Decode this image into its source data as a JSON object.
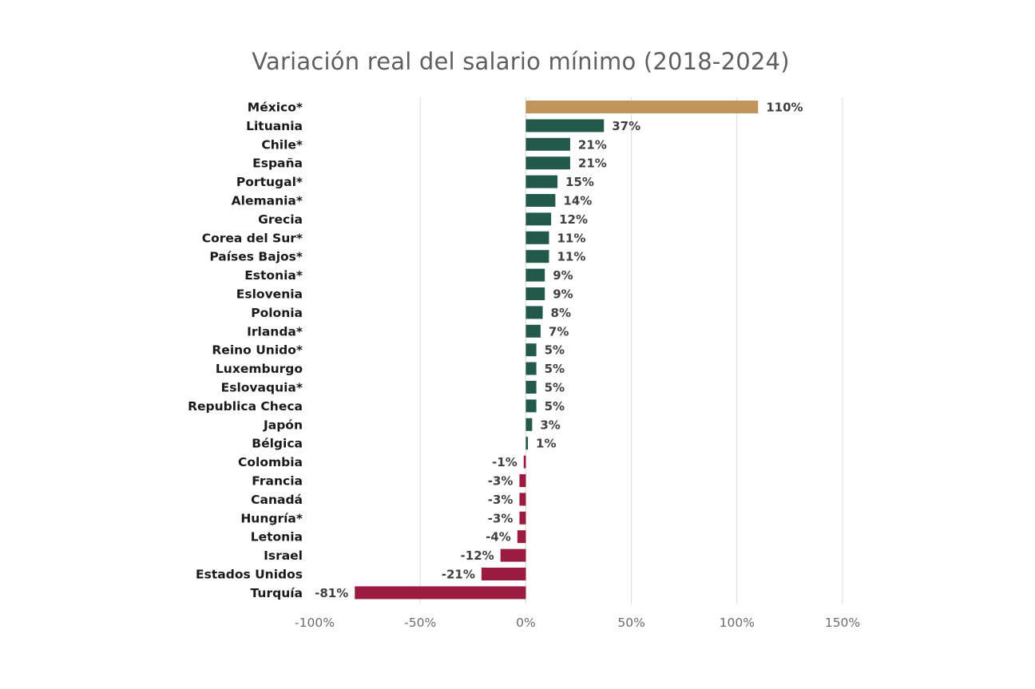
{
  "chart_data": {
    "type": "bar",
    "orientation": "horizontal",
    "title": "Variación real del salario mínimo (2018-2024)",
    "xlabel": "",
    "ylabel": "",
    "xlim": [
      -100,
      150
    ],
    "xticks": [
      -100,
      -50,
      0,
      50,
      100,
      150
    ],
    "tick_labels": [
      "-100%",
      "-50%",
      "0%",
      "50%",
      "100%",
      "150%"
    ],
    "grid": "vertical",
    "legend": "none",
    "categories": [
      "México*",
      "Lituania",
      "Chile*",
      "España",
      "Portugal*",
      "Alemania*",
      "Grecia",
      "Corea del Sur*",
      "Países Bajos*",
      "Estonia*",
      "Eslovenia",
      "Polonia",
      "Irlanda*",
      "Reino Unido*",
      "Luxemburgo",
      "Eslovaquia*",
      "Republica Checa",
      "Japón",
      "Bélgica",
      "Colombia",
      "Francia",
      "Canadá",
      "Hungría*",
      "Letonia",
      "Israel",
      "Estados Unidos",
      "Turquía"
    ],
    "values": [
      110,
      37,
      21,
      21,
      15,
      14,
      12,
      11,
      11,
      9,
      9,
      8,
      7,
      5,
      5,
      5,
      5,
      3,
      1,
      -1,
      -3,
      -3,
      -3,
      -4,
      -12,
      -21,
      -81
    ],
    "value_labels": [
      "110%",
      "37%",
      "21%",
      "21%",
      "15%",
      "14%",
      "12%",
      "11%",
      "11%",
      "9%",
      "9%",
      "8%",
      "7%",
      "5%",
      "5%",
      "5%",
      "5%",
      "3%",
      "1%",
      "-1%",
      "-3%",
      "-3%",
      "-3%",
      "-4%",
      "-12%",
      "-21%",
      "-81%"
    ],
    "colors": {
      "highlight": "#c0955b",
      "positive": "#23594a",
      "negative": "#9b1c3e",
      "grid": "#d9d9d9"
    }
  }
}
